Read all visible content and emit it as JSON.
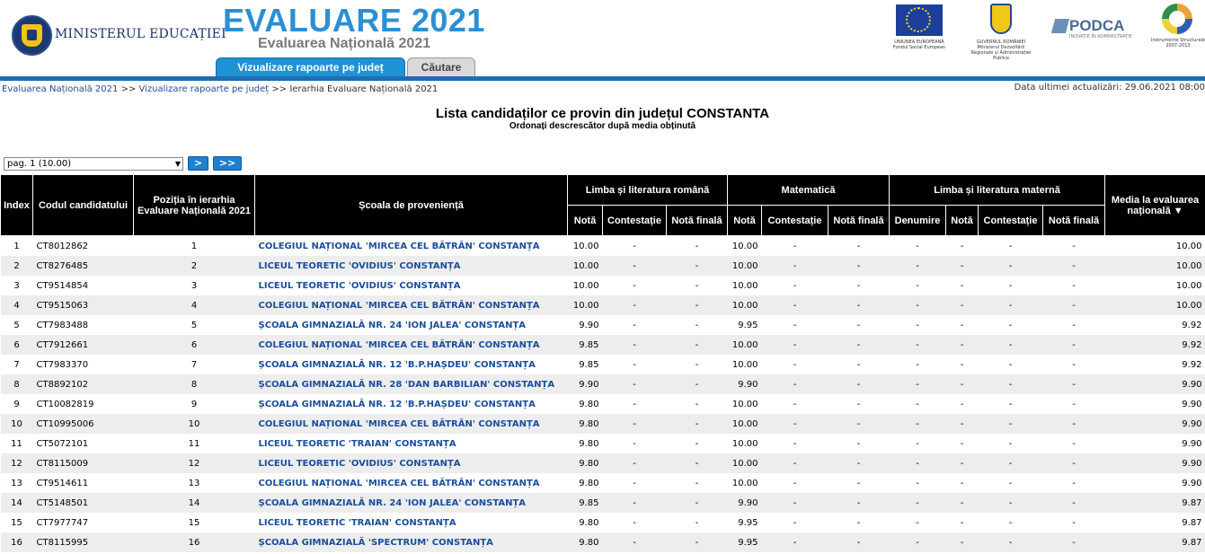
{
  "header": {
    "ministry": "MINISTERUL EDUCAȚIEI",
    "title": "EVALUARE 2021",
    "subtitle": "Evaluarea Națională 2021",
    "logos": {
      "eu_text": "UNIUNEA EUROPEANĂ Fondul Social European",
      "gov_text": "GUVERNUL ROMÂNIEI Ministerul Dezvoltării Regionale și Administrației Publice",
      "podca_name": "PODCA",
      "podca_tag": "INOVAȚIE ÎN ADMINISTRAȚIE",
      "is_text": "Instrumente Structurale 2007-2013"
    }
  },
  "tabs": {
    "active": "Vizualizare rapoarte pe județ",
    "inactive": "Căutare"
  },
  "breadcrumb": {
    "item1": "Evaluarea Națională 2021",
    "sep1": " >> ",
    "item2": "Vizualizare rapoarte pe județ",
    "sep2": " >> ",
    "item3": "Ierarhia Evaluare Națională 2021"
  },
  "updated": "Data ultimei actualizări: 29.06.2021 08:00",
  "list": {
    "title": "Lista candidaților ce provin din județul CONSTANTA",
    "subtitle": "Ordonați descrescător după media obținută"
  },
  "pager": {
    "selected": "pag. 1 (10.00)",
    "next": ">",
    "last": ">>"
  },
  "colors": {
    "tab_active": "#1f92d4",
    "bar": "#1f6cb2",
    "link": "#1a4e9c",
    "header_bg": "#000000"
  },
  "table": {
    "headers": {
      "index": "Index",
      "code": "Codul candidatului",
      "position": "Poziția în ierarhia Evaluare Națională 2021",
      "school": "Școala de proveniență",
      "romana": "Limba și literatura română",
      "mate": "Matematică",
      "materna": "Limba și literatura maternă",
      "media": "Media la evaluarea națională",
      "nota": "Notă",
      "contestatie": "Contestație",
      "nota_finala": "Notă finală",
      "denumire": "Denumire"
    },
    "rows": [
      [
        "1",
        "CT8012862",
        "1",
        "COLEGIUL NAȚIONAL 'MIRCEA CEL BĂTRÂN' CONSTANȚA",
        "10.00",
        "-",
        "-",
        "10.00",
        "-",
        "-",
        "-",
        "-",
        "-",
        "-",
        "10.00"
      ],
      [
        "2",
        "CT8276485",
        "2",
        "LICEUL TEORETIC 'OVIDIUS' CONSTANȚA",
        "10.00",
        "-",
        "-",
        "10.00",
        "-",
        "-",
        "-",
        "-",
        "-",
        "-",
        "10.00"
      ],
      [
        "3",
        "CT9514854",
        "3",
        "LICEUL TEORETIC 'OVIDIUS' CONSTANȚA",
        "10.00",
        "-",
        "-",
        "10.00",
        "-",
        "-",
        "-",
        "-",
        "-",
        "-",
        "10.00"
      ],
      [
        "4",
        "CT9515063",
        "4",
        "COLEGIUL NAȚIONAL 'MIRCEA CEL BĂTRÂN' CONSTANȚA",
        "10.00",
        "-",
        "-",
        "10.00",
        "-",
        "-",
        "-",
        "-",
        "-",
        "-",
        "10.00"
      ],
      [
        "5",
        "CT7983488",
        "5",
        "ȘCOALA GIMNAZIALĂ NR. 24 'ION JALEA' CONSTANȚA",
        "9.90",
        "-",
        "-",
        "9.95",
        "-",
        "-",
        "-",
        "-",
        "-",
        "-",
        "9.92"
      ],
      [
        "6",
        "CT7912661",
        "6",
        "COLEGIUL NAȚIONAL 'MIRCEA CEL BĂTRÂN' CONSTANȚA",
        "9.85",
        "-",
        "-",
        "10.00",
        "-",
        "-",
        "-",
        "-",
        "-",
        "-",
        "9.92"
      ],
      [
        "7",
        "CT7983370",
        "7",
        "ȘCOALA GIMNAZIALĂ NR. 12 'B.P.HAȘDEU' CONSTANȚA",
        "9.85",
        "-",
        "-",
        "10.00",
        "-",
        "-",
        "-",
        "-",
        "-",
        "-",
        "9.92"
      ],
      [
        "8",
        "CT8892102",
        "8",
        "ȘCOALA GIMNAZIALĂ NR. 28 'DAN BARBILIAN' CONSTANȚA",
        "9.90",
        "-",
        "-",
        "9.90",
        "-",
        "-",
        "-",
        "-",
        "-",
        "-",
        "9.90"
      ],
      [
        "9",
        "CT10082819",
        "9",
        "ȘCOALA GIMNAZIALĂ NR. 12 'B.P.HAȘDEU' CONSTANȚA",
        "9.80",
        "-",
        "-",
        "10.00",
        "-",
        "-",
        "-",
        "-",
        "-",
        "-",
        "9.90"
      ],
      [
        "10",
        "CT10995006",
        "10",
        "COLEGIUL NAȚIONAL 'MIRCEA CEL BĂTRÂN' CONSTANȚA",
        "9.80",
        "-",
        "-",
        "10.00",
        "-",
        "-",
        "-",
        "-",
        "-",
        "-",
        "9.90"
      ],
      [
        "11",
        "CT5072101",
        "11",
        "LICEUL TEORETIC 'TRAIAN' CONSTANȚA",
        "9.80",
        "-",
        "-",
        "10.00",
        "-",
        "-",
        "-",
        "-",
        "-",
        "-",
        "9.90"
      ],
      [
        "12",
        "CT8115009",
        "12",
        "LICEUL TEORETIC 'OVIDIUS' CONSTANȚA",
        "9.80",
        "-",
        "-",
        "10.00",
        "-",
        "-",
        "-",
        "-",
        "-",
        "-",
        "9.90"
      ],
      [
        "13",
        "CT9514611",
        "13",
        "COLEGIUL NAȚIONAL 'MIRCEA CEL BĂTRÂN' CONSTANȚA",
        "9.80",
        "-",
        "-",
        "10.00",
        "-",
        "-",
        "-",
        "-",
        "-",
        "-",
        "9.90"
      ],
      [
        "14",
        "CT5148501",
        "14",
        "ȘCOALA GIMNAZIALĂ NR. 24 'ION JALEA' CONSTANȚA",
        "9.85",
        "-",
        "-",
        "9.90",
        "-",
        "-",
        "-",
        "-",
        "-",
        "-",
        "9.87"
      ],
      [
        "15",
        "CT7977747",
        "15",
        "LICEUL TEORETIC 'TRAIAN' CONSTANȚA",
        "9.80",
        "-",
        "-",
        "9.95",
        "-",
        "-",
        "-",
        "-",
        "-",
        "-",
        "9.87"
      ],
      [
        "16",
        "CT8115995",
        "16",
        "ȘCOALA GIMNAZIALĂ 'SPECTRUM' CONSTANȚA",
        "9.80",
        "-",
        "-",
        "9.95",
        "-",
        "-",
        "-",
        "-",
        "-",
        "-",
        "9.87"
      ]
    ]
  }
}
